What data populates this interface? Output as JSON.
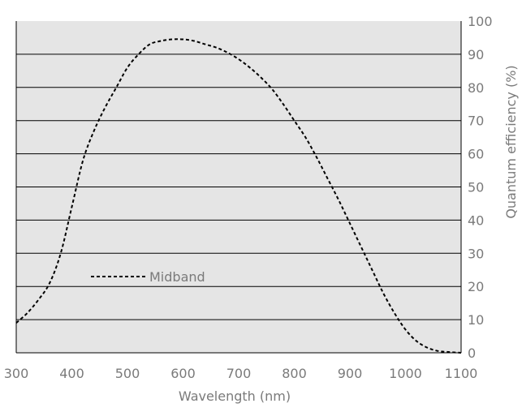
{
  "chart_data": {
    "type": "line",
    "title": "",
    "xlabel": "Wavelength (nm)",
    "ylabel": "Quantum efficiency (%)",
    "xlim": [
      300,
      1100
    ],
    "ylim": [
      0,
      100
    ],
    "x_ticks": [
      300,
      400,
      500,
      600,
      700,
      800,
      900,
      1000,
      1100
    ],
    "y_ticks": [
      0,
      10,
      20,
      30,
      40,
      50,
      60,
      70,
      80,
      90,
      100
    ],
    "y_axis_side": "right",
    "grid": "horizontal",
    "legend_position": "lower-left",
    "series": [
      {
        "name": "Midband",
        "line_style": "dashed",
        "color": "#000000",
        "x": [
          300,
          320,
          340,
          360,
          380,
          400,
          420,
          440,
          460,
          480,
          500,
          520,
          540,
          560,
          580,
          600,
          620,
          640,
          660,
          680,
          700,
          720,
          740,
          760,
          780,
          800,
          820,
          840,
          860,
          880,
          900,
          920,
          940,
          960,
          980,
          1000,
          1020,
          1040,
          1060,
          1080,
          1100
        ],
        "y": [
          9,
          12,
          16,
          21,
          30,
          44,
          58,
          67,
          74,
          80,
          86,
          90,
          93,
          94,
          94.5,
          94.5,
          94,
          93,
          92,
          90.5,
          88.5,
          86,
          83,
          79.5,
          75,
          70,
          65,
          59,
          52.5,
          46,
          39,
          32,
          25,
          18,
          12,
          7,
          3.5,
          1.5,
          0.5,
          0.2,
          0
        ]
      }
    ],
    "background_color": "#e5e5e5",
    "gridline_color": "#000000",
    "text_color": "#7a7a7a"
  }
}
